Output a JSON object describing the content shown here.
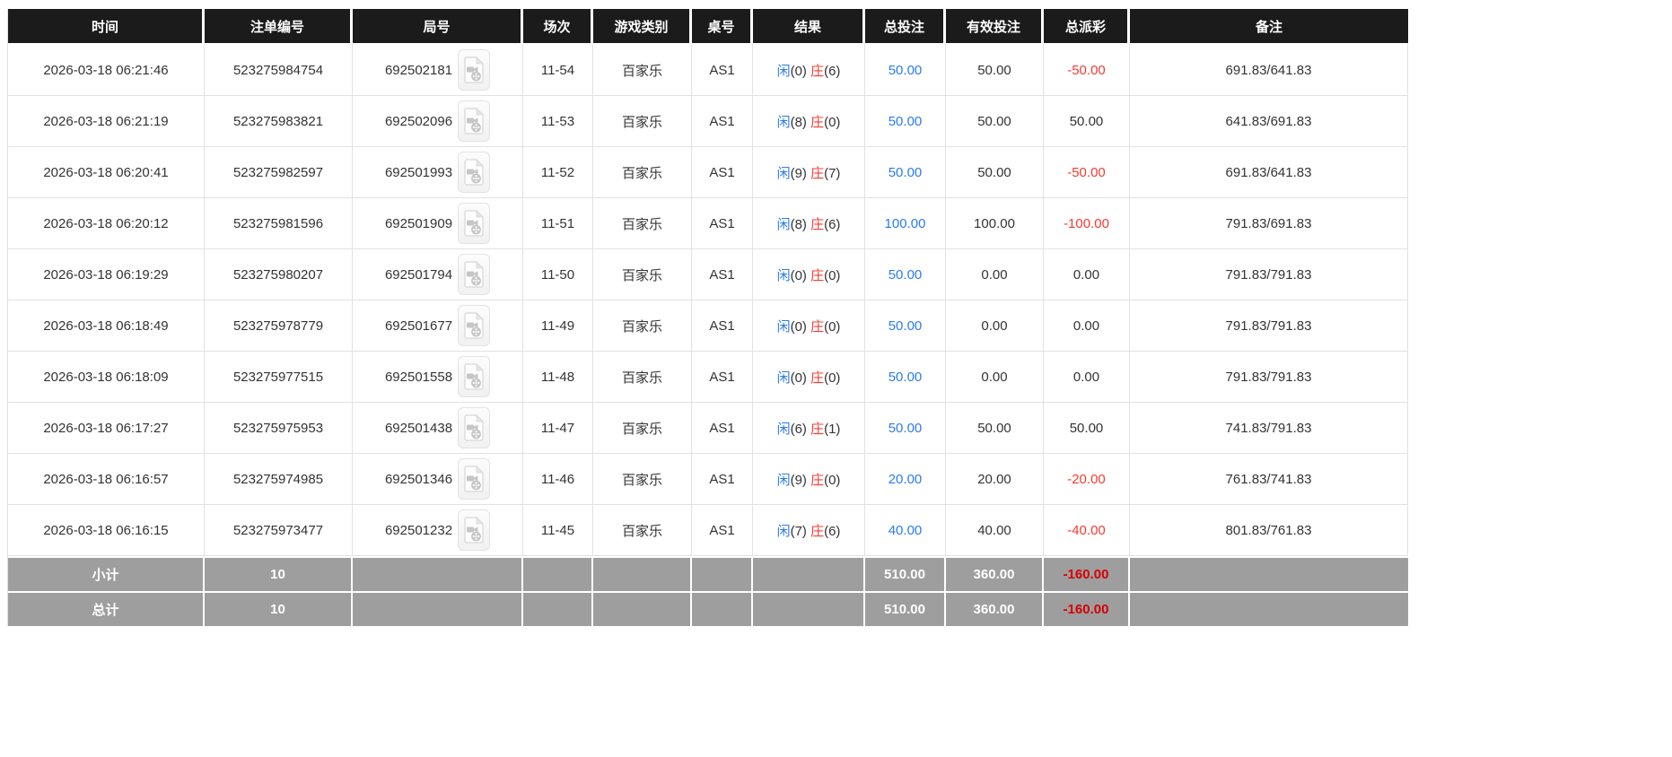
{
  "table": {
    "headers": [
      "时间",
      "注单编号",
      "局号",
      "场次",
      "游戏类别",
      "桌号",
      "结果",
      "总投注",
      "有效投注",
      "总派彩",
      "备注"
    ],
    "rows": [
      {
        "time": "2026-03-18 06:21:46",
        "bet_no": "523275984754",
        "round_no": "692502181",
        "session": "11-54",
        "game_type": "百家乐",
        "table_no": "AS1",
        "result": {
          "player": "闲(0)",
          "banker": "庄(6)"
        },
        "total_bet": "50.00",
        "valid_bet": "50.00",
        "payout": "-50.00",
        "remark": "691.83/641.83"
      },
      {
        "time": "2026-03-18 06:21:19",
        "bet_no": "523275983821",
        "round_no": "692502096",
        "session": "11-53",
        "game_type": "百家乐",
        "table_no": "AS1",
        "result": {
          "player": "闲(8)",
          "banker": "庄(0)"
        },
        "total_bet": "50.00",
        "valid_bet": "50.00",
        "payout": "50.00",
        "remark": "641.83/691.83"
      },
      {
        "time": "2026-03-18 06:20:41",
        "bet_no": "523275982597",
        "round_no": "692501993",
        "session": "11-52",
        "game_type": "百家乐",
        "table_no": "AS1",
        "result": {
          "player": "闲(9)",
          "banker": "庄(7)"
        },
        "total_bet": "50.00",
        "valid_bet": "50.00",
        "payout": "-50.00",
        "remark": "691.83/641.83"
      },
      {
        "time": "2026-03-18 06:20:12",
        "bet_no": "523275981596",
        "round_no": "692501909",
        "session": "11-51",
        "game_type": "百家乐",
        "table_no": "AS1",
        "result": {
          "player": "闲(8)",
          "banker": "庄(6)"
        },
        "total_bet": "100.00",
        "valid_bet": "100.00",
        "payout": "-100.00",
        "remark": "791.83/691.83"
      },
      {
        "time": "2026-03-18 06:19:29",
        "bet_no": "523275980207",
        "round_no": "692501794",
        "session": "11-50",
        "game_type": "百家乐",
        "table_no": "AS1",
        "result": {
          "player": "闲(0)",
          "banker": "庄(0)"
        },
        "total_bet": "50.00",
        "valid_bet": "0.00",
        "payout": "0.00",
        "remark": "791.83/791.83"
      },
      {
        "time": "2026-03-18 06:18:49",
        "bet_no": "523275978779",
        "round_no": "692501677",
        "session": "11-49",
        "game_type": "百家乐",
        "table_no": "AS1",
        "result": {
          "player": "闲(0)",
          "banker": "庄(0)"
        },
        "total_bet": "50.00",
        "valid_bet": "0.00",
        "payout": "0.00",
        "remark": "791.83/791.83"
      },
      {
        "time": "2026-03-18 06:18:09",
        "bet_no": "523275977515",
        "round_no": "692501558",
        "session": "11-48",
        "game_type": "百家乐",
        "table_no": "AS1",
        "result": {
          "player": "闲(0)",
          "banker": "庄(0)"
        },
        "total_bet": "50.00",
        "valid_bet": "0.00",
        "payout": "0.00",
        "remark": "791.83/791.83"
      },
      {
        "time": "2026-03-18 06:17:27",
        "bet_no": "523275975953",
        "round_no": "692501438",
        "session": "11-47",
        "game_type": "百家乐",
        "table_no": "AS1",
        "result": {
          "player": "闲(6)",
          "banker": "庄(1)"
        },
        "total_bet": "50.00",
        "valid_bet": "50.00",
        "payout": "50.00",
        "remark": "741.83/791.83"
      },
      {
        "time": "2026-03-18 06:16:57",
        "bet_no": "523275974985",
        "round_no": "692501346",
        "session": "11-46",
        "game_type": "百家乐",
        "table_no": "AS1",
        "result": {
          "player": "闲(9)",
          "banker": "庄(0)"
        },
        "total_bet": "20.00",
        "valid_bet": "20.00",
        "payout": "-20.00",
        "remark": "761.83/741.83"
      },
      {
        "time": "2026-03-18 06:16:15",
        "bet_no": "523275973477",
        "round_no": "692501232",
        "session": "11-45",
        "game_type": "百家乐",
        "table_no": "AS1",
        "result": {
          "player": "闲(7)",
          "banker": "庄(6)"
        },
        "total_bet": "40.00",
        "valid_bet": "40.00",
        "payout": "-40.00",
        "remark": "801.83/761.83"
      }
    ],
    "footer": [
      {
        "label": "小计",
        "count": "10",
        "total_bet": "510.00",
        "valid_bet": "360.00",
        "payout": "-160.00"
      },
      {
        "label": "总计",
        "count": "10",
        "total_bet": "510.00",
        "valid_bet": "360.00",
        "payout": "-160.00"
      }
    ]
  },
  "icons": {
    "round_video_icon": "video-file-icon"
  },
  "colors": {
    "header_bg": "#1b1b1b",
    "accent_blue": "#2b7bea",
    "accent_red": "#f43b30",
    "footer_bg": "#9e9e9e",
    "footer_red": "#d50000",
    "text": "#333333",
    "grid": "#e2e2e2"
  }
}
